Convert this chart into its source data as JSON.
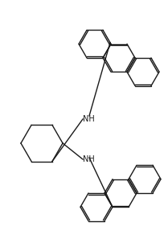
{
  "bg": "#ffffff",
  "lc": "#1a1a1a",
  "lw": 1.0,
  "figw": 2.04,
  "figh": 3.07,
  "dpi": 100
}
